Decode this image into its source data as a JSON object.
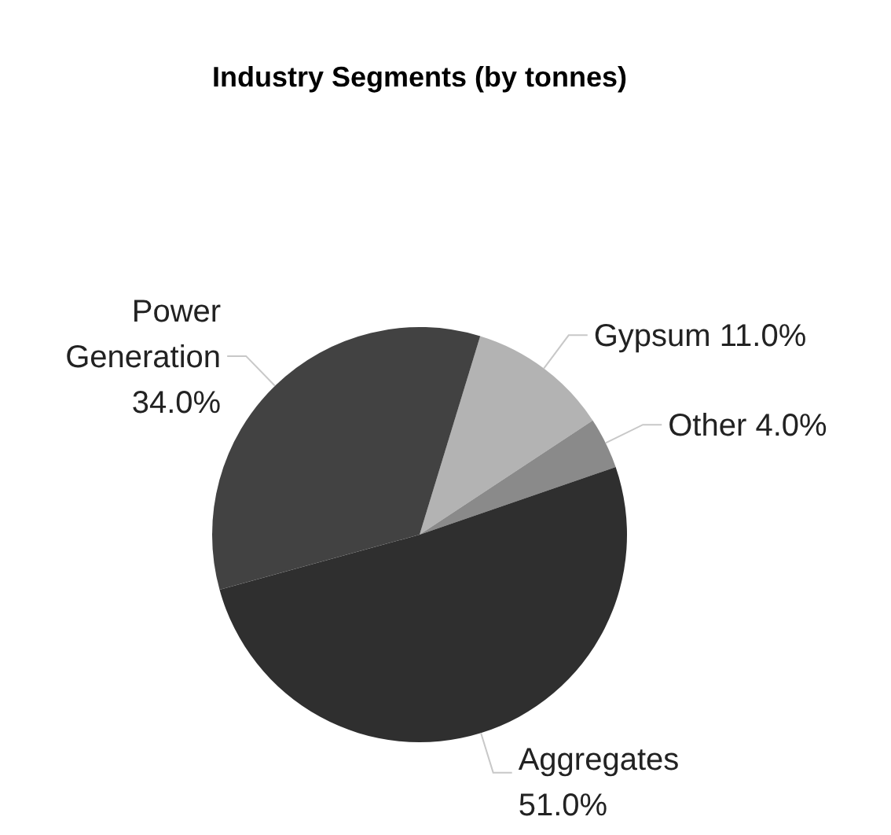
{
  "chart_data": {
    "type": "pie",
    "title": "Industry Segments (by tonnes)",
    "categories": [
      "Gypsum",
      "Other",
      "Aggregates",
      "Power Generation"
    ],
    "values": [
      11,
      4,
      51,
      34
    ],
    "colors": [
      "#b3b3b3",
      "#8a8a8a",
      "#2f2f2f",
      "#424242"
    ],
    "value_labels": [
      "11.0%",
      "4.0%",
      "51.0%",
      "34.0%"
    ]
  }
}
